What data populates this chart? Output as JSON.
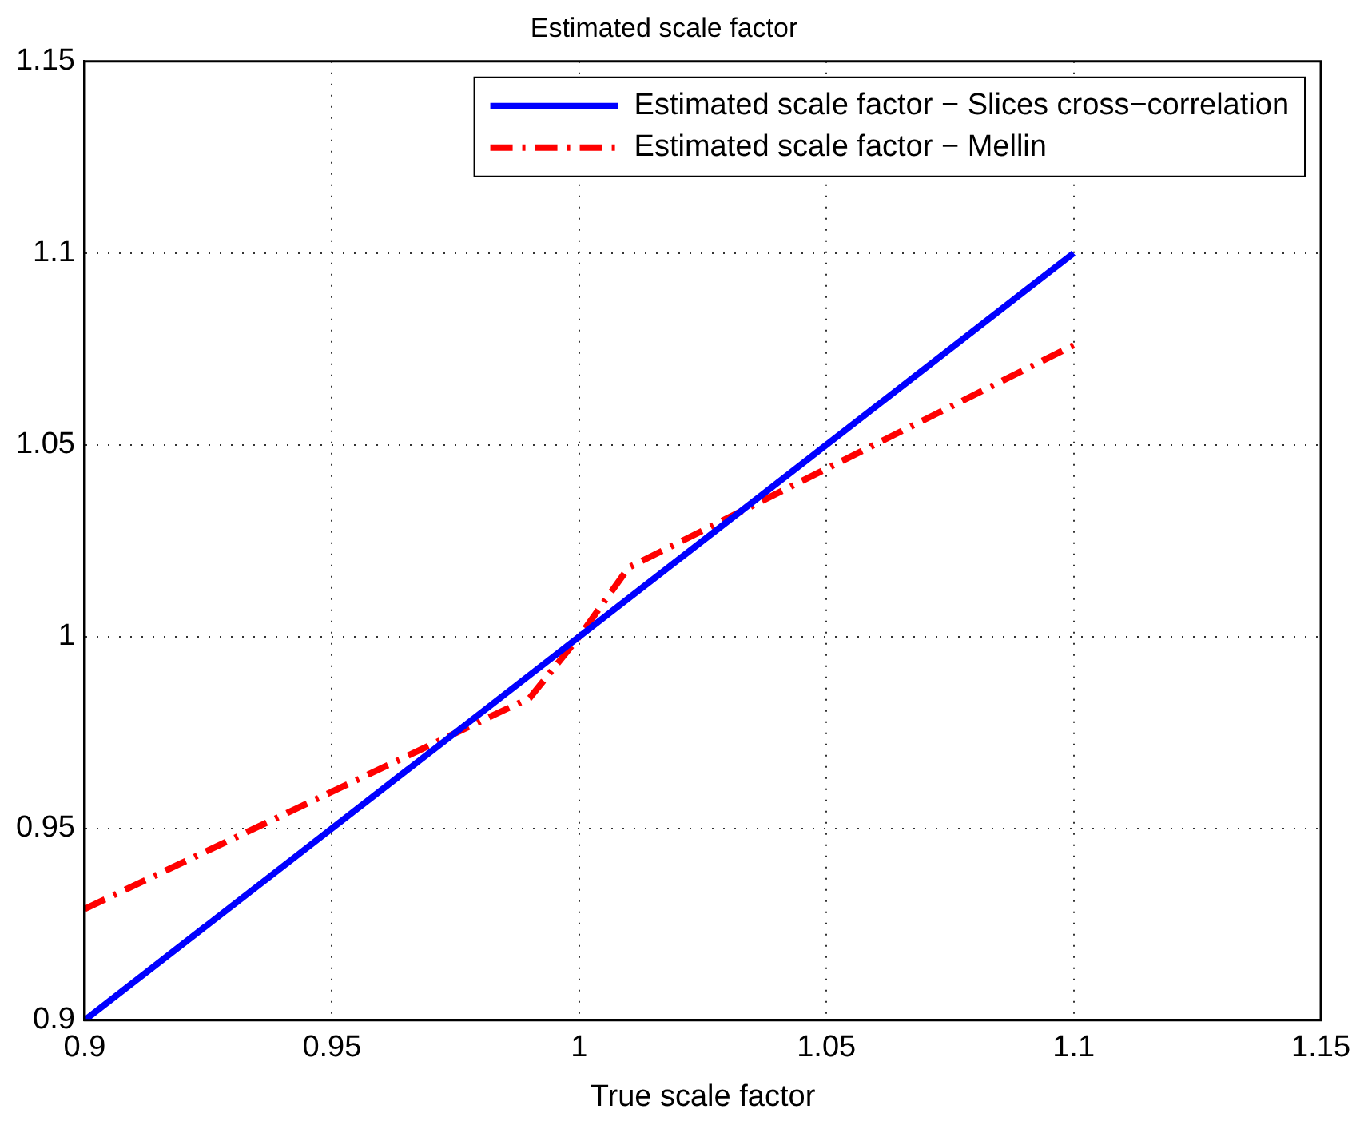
{
  "chart_data": {
    "type": "line",
    "title": "Estimated scale factor",
    "xlabel": "True scale factor",
    "xlim": [
      0.9,
      1.15
    ],
    "xticks": [
      0.9,
      0.95,
      1,
      1.05,
      1.1,
      1.15
    ],
    "ylim": [
      0.9,
      1.15
    ],
    "yticks": [
      0.9,
      0.95,
      1,
      1.05,
      1.1,
      1.15
    ],
    "grid": true,
    "legend": "top right",
    "series": [
      {
        "name": "Estimated scale factor − Slices cross−correlation",
        "color": "#0000ff",
        "line_style": "solid",
        "x": [
          0.9,
          1.0,
          1.1
        ],
        "values": [
          0.9,
          1.0,
          1.1
        ]
      },
      {
        "name": "Estimated scale factor − Mellin",
        "color": "#ff0000",
        "line_style": "dashdot",
        "x": [
          0.9,
          0.99,
          1.0,
          1.01,
          1.1
        ],
        "values": [
          0.929,
          0.984,
          1.0,
          1.018,
          1.076
        ]
      }
    ]
  }
}
